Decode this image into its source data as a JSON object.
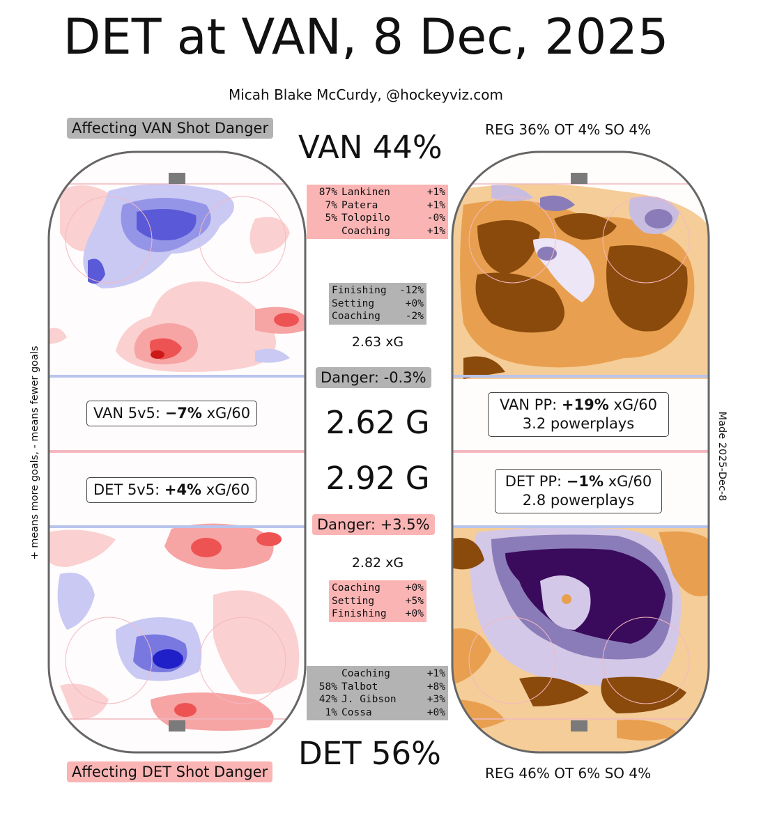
{
  "title": "DET at VAN, 8 Dec, 2025",
  "credit": "Micah Blake McCurdy, @hockeyviz.com",
  "affecting_van": "Affecting VAN Shot Danger",
  "affecting_det": "Affecting DET Shot Danger",
  "van_pct": "VAN 44%",
  "det_pct": "DET 56%",
  "van_outcomes": "REG 36% OT 4% SO 4%",
  "det_outcomes": "REG 46% OT 6% SO 4%",
  "van_goalies": [
    {
      "pct": "87%",
      "name": "Lankinen",
      "val": "+1%"
    },
    {
      "pct": "7%",
      "name": "Patera",
      "val": "+1%"
    },
    {
      "pct": "5%",
      "name": "Tolopilo",
      "val": "-0%"
    },
    {
      "pct": "",
      "name": "Coaching",
      "val": "+1%"
    }
  ],
  "det_goalies": [
    {
      "pct": "",
      "name": "Coaching",
      "val": "+1%"
    },
    {
      "pct": "58%",
      "name": "Talbot",
      "val": "+8%"
    },
    {
      "pct": "42%",
      "name": "J. Gibson",
      "val": "+3%"
    },
    {
      "pct": "1%",
      "name": "Cossa",
      "val": "+0%"
    }
  ],
  "van_factors": [
    {
      "name": "Finishing",
      "val": "-12%"
    },
    {
      "name": "Setting",
      "val": "+0%"
    },
    {
      "name": "Coaching",
      "val": "-2%"
    }
  ],
  "det_factors": [
    {
      "name": "Coaching",
      "val": "+0%"
    },
    {
      "name": "Setting",
      "val": "+5%"
    },
    {
      "name": "Finishing",
      "val": "+0%"
    }
  ],
  "van_xg": "2.63 xG",
  "det_xg": "2.82 xG",
  "van_danger": "Danger: -0.3%",
  "det_danger": "Danger: +3.5%",
  "van_goals": "2.62 G",
  "det_goals": "2.92 G",
  "van_5v5": {
    "prefix": "VAN 5v5: ",
    "value": "−7%",
    "suffix": " xG/60"
  },
  "det_5v5": {
    "prefix": "DET 5v5: ",
    "value": "+4%",
    "suffix": " xG/60"
  },
  "van_pp": {
    "prefix": "VAN PP: ",
    "value": "+19%",
    "suffix": " xG/60",
    "line2": "3.2 powerplays"
  },
  "det_pp": {
    "prefix": "DET PP: ",
    "value": "−1%",
    "suffix": " xG/60",
    "line2": "2.8 powerplays"
  },
  "side_left": "+ means more goals, - means fewer goals",
  "side_right": "Made 2025-Dec-8",
  "colors": {
    "more_goals": "#e8212b",
    "fewer_goals": "#3d3dd8",
    "pp_more": "#8a4a0c",
    "pp_fewer": "#3a0b5c",
    "pink_box": "#fbb4b4",
    "grey_box": "#b3b3b3"
  }
}
